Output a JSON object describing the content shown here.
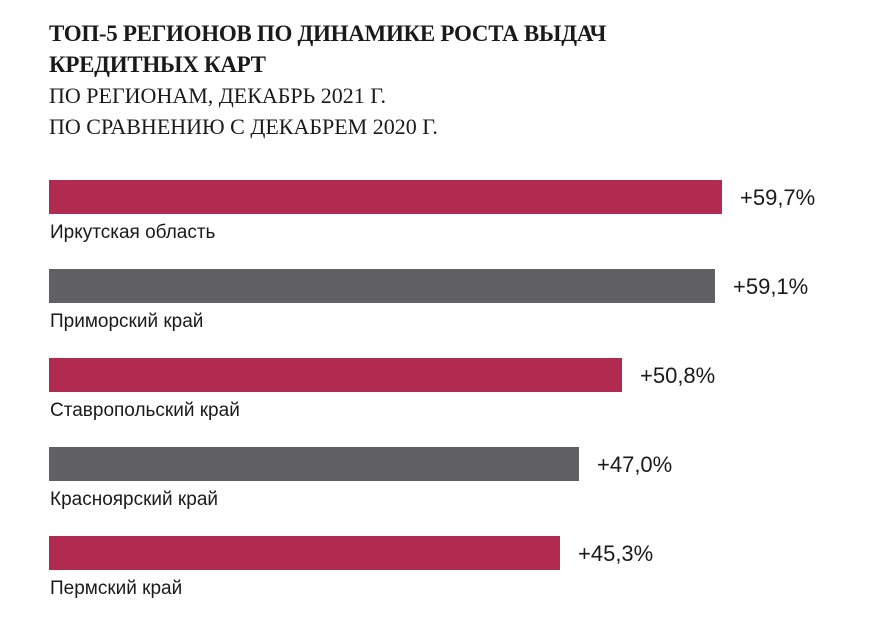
{
  "chart_data": {
    "type": "bar",
    "orientation": "horizontal",
    "title": "ТОП-5 РЕГИОНОВ ПО ДИНАМИКЕ РОСТА ВЫДАЧ КРЕДИТНЫХ КАРТ",
    "subtitle_line1": "ПО РЕГИОНАМ, ДЕКАБРЬ 2021 Г.",
    "subtitle_line2": "ПО СРАВНЕНИЮ С ДЕКАБРЕМ 2020 Г.",
    "categories": [
      "Иркутская область",
      "Приморский край",
      "Ставропольский край",
      "Красноярский край",
      "Пермский край"
    ],
    "values": [
      59.7,
      59.1,
      50.8,
      47.0,
      45.3
    ],
    "value_labels": [
      "+59,7%",
      "+59,1%",
      "+50,8%",
      "+47,0%",
      "+45,3%"
    ],
    "unit": "%",
    "colors": [
      "#b12a50",
      "#616163",
      "#b12a50",
      "#616163",
      "#b12a50"
    ],
    "xlabel": "",
    "ylabel": "",
    "xlim": [
      0,
      59.7
    ],
    "grid": false,
    "legend": "none"
  }
}
